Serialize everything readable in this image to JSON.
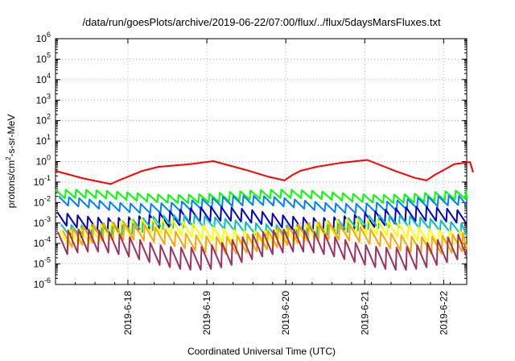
{
  "chart_data": {
    "type": "line",
    "title": "/data/run/goesPlots/archive/2019-06-22/07:00/flux/../flux/5daysMarsFluxes.txt",
    "xlabel": "Coordinated Universal Time (UTC)",
    "ylabel": {
      "pre": "protons/cm",
      "sup": "2",
      "post": "-s-sr-MeV"
    },
    "y_scale": "log",
    "ylim_exp": [
      -6,
      6
    ],
    "y_tick_exponents": [
      -6,
      -5,
      -4,
      -3,
      -2,
      -1,
      0,
      1,
      2,
      3,
      4,
      5,
      6
    ],
    "x_range_days": [
      "2019-06-17 02:00",
      "2019-06-22 07:00"
    ],
    "x_ticks": [
      {
        "label": "2019-6-18",
        "date": "2019-06-18"
      },
      {
        "label": "2019-6-19",
        "date": "2019-06-19"
      },
      {
        "label": "2019-6-20",
        "date": "2019-06-20"
      },
      {
        "label": "2019-6-21",
        "date": "2019-06-21"
      },
      {
        "label": "2019-6-22",
        "date": "2019-06-22"
      }
    ],
    "grid": true,
    "series": [
      {
        "color": "#ff0000",
        "kind": "trend",
        "points": [
          [
            0.0,
            0.35
          ],
          [
            0.35,
            0.15
          ],
          [
            0.7,
            0.08
          ],
          [
            0.8,
            0.12
          ],
          [
            1.1,
            0.35
          ],
          [
            1.3,
            0.55
          ],
          [
            1.7,
            0.75
          ],
          [
            2.0,
            1.05
          ],
          [
            2.4,
            0.4
          ],
          [
            2.7,
            0.18
          ],
          [
            2.9,
            0.12
          ],
          [
            3.0,
            0.22
          ],
          [
            3.1,
            0.35
          ],
          [
            3.3,
            0.55
          ],
          [
            3.6,
            0.85
          ],
          [
            3.95,
            1.2
          ],
          [
            4.3,
            0.35
          ],
          [
            4.55,
            0.16
          ],
          [
            4.7,
            0.12
          ],
          [
            4.8,
            0.22
          ],
          [
            4.95,
            0.45
          ],
          [
            5.05,
            0.75
          ],
          [
            5.25,
            0.95
          ],
          [
            5.29,
            0.3
          ]
        ]
      },
      {
        "color": "#00ff00",
        "kind": "saw",
        "base": 0.02,
        "amp": 1.6,
        "ripple": 0.25,
        "period": 0.13,
        "phase": 0.0
      },
      {
        "color": "#0080ff",
        "kind": "saw",
        "base": 0.008,
        "amp": 1.7,
        "ripple": 0.4,
        "period": 0.13,
        "phase": 0.04
      },
      {
        "color": "#0000c8",
        "kind": "saw",
        "base": 0.0015,
        "amp": 2.2,
        "ripple": 0.55,
        "period": 0.13,
        "phase": 0.02
      },
      {
        "color": "#00c0c0",
        "kind": "saw",
        "base": 0.0007,
        "amp": 2.0,
        "ripple": 0.5,
        "period": 0.13,
        "phase": 0.07
      },
      {
        "color": "#ffff00",
        "kind": "saw",
        "base": 0.00035,
        "amp": 2.4,
        "ripple": 0.6,
        "period": 0.13,
        "phase": 0.05
      },
      {
        "color": "#ffa500",
        "kind": "saw",
        "base": 0.00018,
        "amp": 2.6,
        "ripple": 0.7,
        "period": 0.13,
        "phase": 0.09
      },
      {
        "color": "#a03060",
        "kind": "saw",
        "base": 5e-05,
        "amp": 3.5,
        "ripple": 0.9,
        "period": 0.13,
        "phase": 0.03
      }
    ]
  }
}
